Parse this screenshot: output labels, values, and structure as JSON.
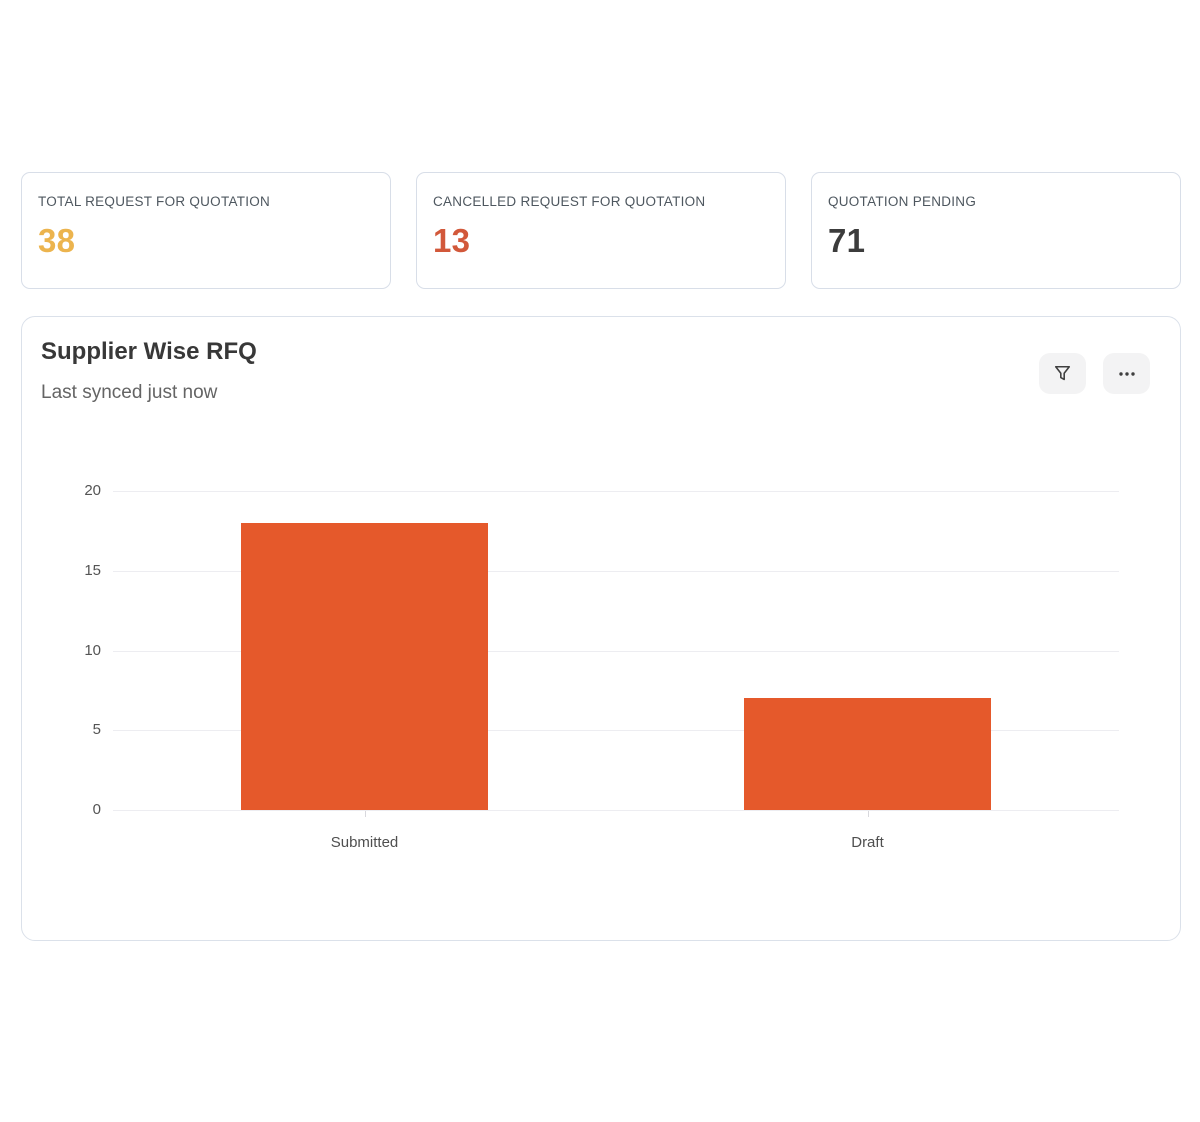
{
  "stat_cards": [
    {
      "label": "TOTAL REQUEST FOR QUOTATION",
      "value": "38",
      "value_color": "#ecb44e"
    },
    {
      "label": "CANCELLED REQUEST FOR QUOTATION",
      "value": "13",
      "value_color": "#d2583a"
    },
    {
      "label": "QUOTATION PENDING",
      "value": "71",
      "value_color": "#3c3c3c"
    }
  ],
  "chart_card": {
    "title": "Supplier Wise RFQ",
    "subtitle": "Last synced just now",
    "toolbar": {
      "filter_icon": "funnel-icon",
      "menu_icon": "ellipsis-icon"
    }
  },
  "chart_data": {
    "type": "bar",
    "title": "Supplier Wise RFQ",
    "categories": [
      "Submitted",
      "Draft"
    ],
    "values": [
      18,
      7
    ],
    "bar_color": "#e5592b",
    "ylim": [
      0,
      20
    ],
    "y_ticks": [
      0,
      5,
      10,
      15,
      20
    ],
    "grid": true,
    "legend": "none",
    "xlabel": "",
    "ylabel": ""
  }
}
